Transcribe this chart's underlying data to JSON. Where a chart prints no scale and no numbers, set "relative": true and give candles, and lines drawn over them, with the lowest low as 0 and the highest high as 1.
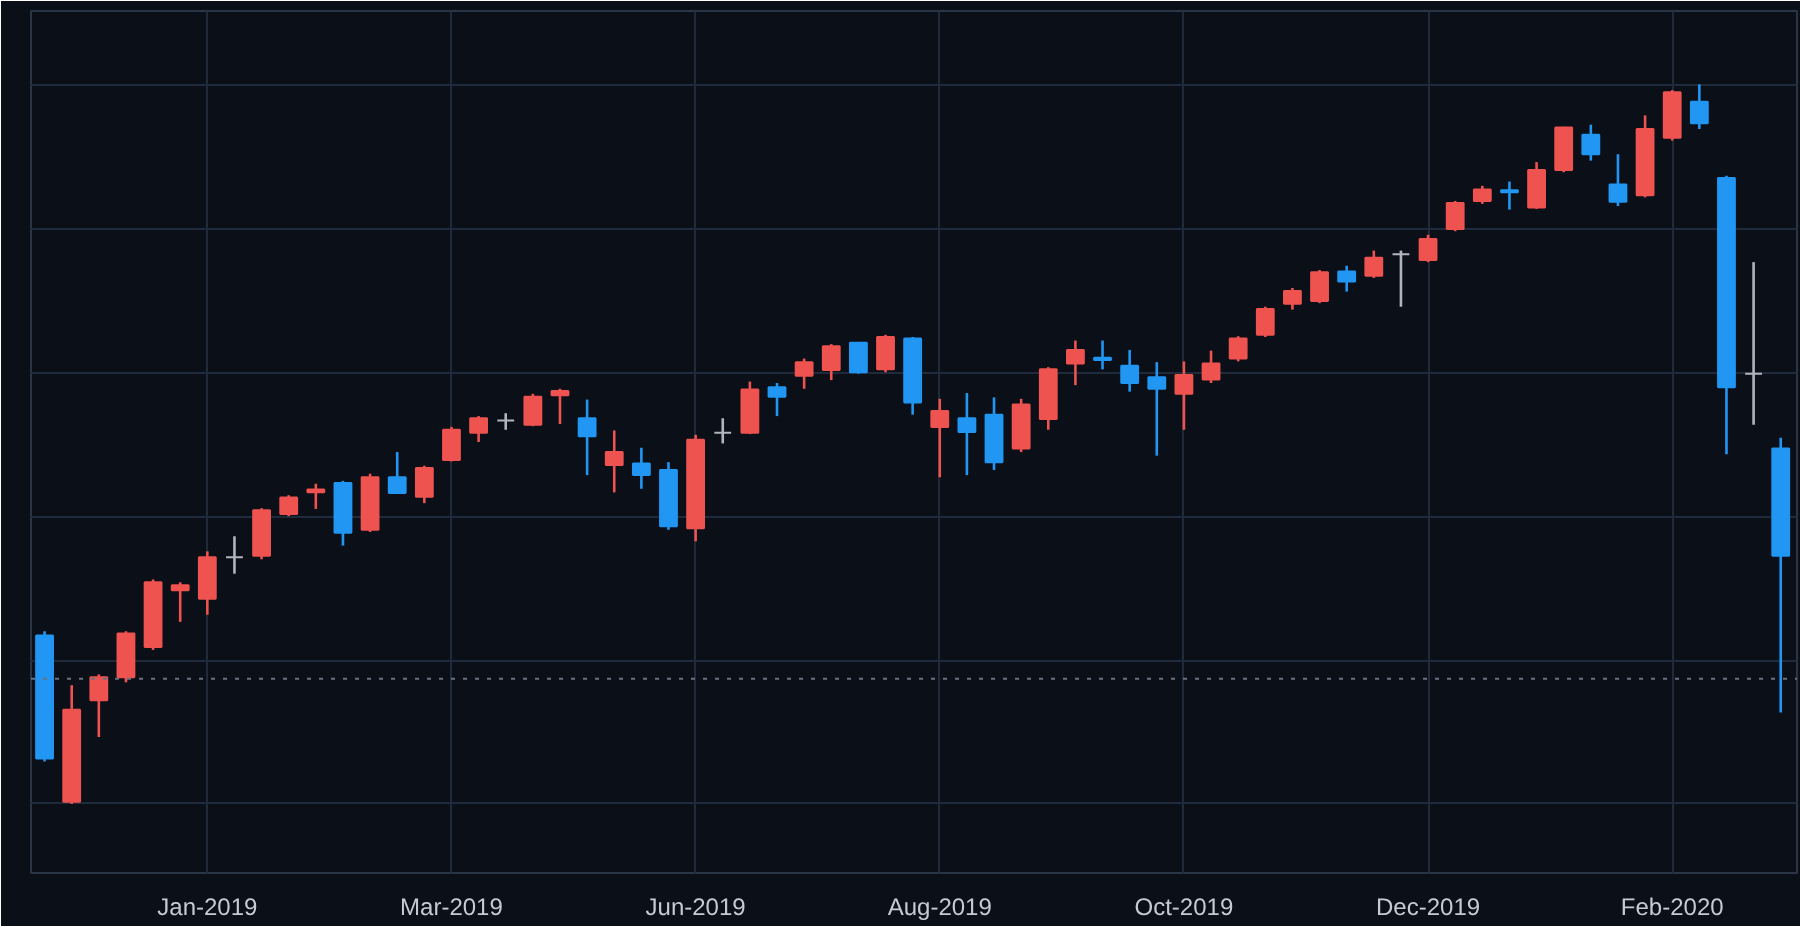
{
  "chart_data": {
    "type": "candlestick",
    "relative": true,
    "grid": true,
    "categories": [
      null,
      null,
      null,
      null,
      null,
      null,
      "Jan-2019",
      null,
      null,
      null,
      null,
      null,
      null,
      null,
      null,
      "Mar-2019",
      null,
      null,
      null,
      null,
      null,
      null,
      null,
      null,
      "Jun-2019",
      null,
      null,
      null,
      null,
      null,
      null,
      null,
      null,
      "Aug-2019",
      null,
      null,
      null,
      null,
      null,
      null,
      null,
      null,
      "Oct-2019",
      null,
      null,
      null,
      null,
      null,
      null,
      null,
      null,
      "Dec-2019",
      null,
      null,
      null,
      null,
      null,
      null,
      null,
      null,
      "Feb-2020",
      null,
      null,
      null,
      null
    ],
    "ohlc": [
      [
        0.234,
        0.24,
        0.059,
        0.063
      ],
      [
        0.003,
        0.165,
        0.0,
        0.131
      ],
      [
        0.144,
        0.18,
        0.093,
        0.176
      ],
      [
        0.176,
        0.24,
        0.169,
        0.237
      ],
      [
        0.218,
        0.312,
        0.214,
        0.308
      ],
      [
        0.297,
        0.308,
        0.253,
        0.304
      ],
      [
        0.285,
        0.351,
        0.263,
        0.343
      ],
      [
        0.343,
        0.372,
        0.32,
        0.343
      ],
      [
        0.345,
        0.411,
        0.34,
        0.408
      ],
      [
        0.403,
        0.429,
        0.4,
        0.426
      ],
      [
        0.433,
        0.445,
        0.41,
        0.437
      ],
      [
        0.446,
        0.449,
        0.359,
        0.377
      ],
      [
        0.381,
        0.459,
        0.378,
        0.454
      ],
      [
        0.454,
        0.489,
        0.432,
        0.432
      ],
      [
        0.427,
        0.47,
        0.418,
        0.467
      ],
      [
        0.478,
        0.524,
        0.476,
        0.52
      ],
      [
        0.516,
        0.539,
        0.503,
        0.536
      ],
      [
        0.533,
        0.543,
        0.52,
        0.533
      ],
      [
        0.527,
        0.57,
        0.525,
        0.566
      ],
      [
        0.568,
        0.577,
        0.528,
        0.574
      ],
      [
        0.536,
        0.562,
        0.457,
        0.511
      ],
      [
        0.471,
        0.519,
        0.433,
        0.489
      ],
      [
        0.473,
        0.495,
        0.438,
        0.457
      ],
      [
        0.464,
        0.475,
        0.381,
        0.386
      ],
      [
        0.383,
        0.513,
        0.365,
        0.506
      ],
      [
        0.516,
        0.536,
        0.501,
        0.516
      ],
      [
        0.516,
        0.587,
        0.514,
        0.576
      ],
      [
        0.579,
        0.585,
        0.539,
        0.566
      ],
      [
        0.595,
        0.619,
        0.577,
        0.614
      ],
      [
        0.603,
        0.639,
        0.589,
        0.636
      ],
      [
        0.641,
        0.642,
        0.598,
        0.6
      ],
      [
        0.604,
        0.652,
        0.6,
        0.649
      ],
      [
        0.647,
        0.649,
        0.541,
        0.558
      ],
      [
        0.524,
        0.563,
        0.454,
        0.546
      ],
      [
        0.536,
        0.571,
        0.457,
        0.517
      ],
      [
        0.541,
        0.565,
        0.464,
        0.475
      ],
      [
        0.494,
        0.563,
        0.489,
        0.555
      ],
      [
        0.535,
        0.607,
        0.52,
        0.604
      ],
      [
        0.612,
        0.644,
        0.582,
        0.631
      ],
      [
        0.62,
        0.644,
        0.604,
        0.617
      ],
      [
        0.609,
        0.631,
        0.573,
        0.585
      ],
      [
        0.593,
        0.614,
        0.484,
        0.577
      ],
      [
        0.57,
        0.615,
        0.52,
        0.596
      ],
      [
        0.59,
        0.63,
        0.585,
        0.612
      ],
      [
        0.619,
        0.65,
        0.615,
        0.647
      ],
      [
        0.652,
        0.691,
        0.649,
        0.688
      ],
      [
        0.695,
        0.717,
        0.687,
        0.713
      ],
      [
        0.699,
        0.742,
        0.696,
        0.739
      ],
      [
        0.74,
        0.748,
        0.712,
        0.726
      ],
      [
        0.734,
        0.769,
        0.731,
        0.759
      ],
      [
        0.764,
        0.769,
        0.691,
        0.764
      ],
      [
        0.756,
        0.791,
        0.753,
        0.785
      ],
      [
        0.799,
        0.838,
        0.796,
        0.835
      ],
      [
        0.838,
        0.859,
        0.834,
        0.854
      ],
      [
        0.853,
        0.865,
        0.826,
        0.85
      ],
      [
        0.829,
        0.892,
        0.827,
        0.881
      ],
      [
        0.881,
        0.941,
        0.878,
        0.94
      ],
      [
        0.93,
        0.944,
        0.894,
        0.903
      ],
      [
        0.861,
        0.903,
        0.831,
        0.837
      ],
      [
        0.846,
        0.957,
        0.843,
        0.938
      ],
      [
        0.926,
        0.992,
        0.922,
        0.989
      ],
      [
        0.976,
        1.0,
        0.938,
        0.946
      ],
      [
        0.87,
        0.873,
        0.486,
        0.579
      ],
      [
        0.598,
        0.753,
        0.527,
        0.598
      ],
      [
        0.494,
        0.509,
        0.127,
        0.345
      ]
    ],
    "colors": [
      "#2196f3",
      "#ef5350",
      "#ef5350",
      "#ef5350",
      "#ef5350",
      "#ef5350",
      "#ef5350",
      "#b2b5be",
      "#ef5350",
      "#ef5350",
      "#ef5350",
      "#2196f3",
      "#ef5350",
      "#2196f3",
      "#ef5350",
      "#ef5350",
      "#ef5350",
      "#b2b5be",
      "#ef5350",
      "#ef5350",
      "#2196f3",
      "#ef5350",
      "#2196f3",
      "#2196f3",
      "#ef5350",
      "#b2b5be",
      "#ef5350",
      "#2196f3",
      "#ef5350",
      "#ef5350",
      "#2196f3",
      "#ef5350",
      "#2196f3",
      "#ef5350",
      "#2196f3",
      "#2196f3",
      "#ef5350",
      "#ef5350",
      "#ef5350",
      "#2196f3",
      "#2196f3",
      "#2196f3",
      "#ef5350",
      "#ef5350",
      "#ef5350",
      "#ef5350",
      "#ef5350",
      "#ef5350",
      "#2196f3",
      "#ef5350",
      "#b2b5be",
      "#ef5350",
      "#ef5350",
      "#ef5350",
      "#2196f3",
      "#ef5350",
      "#ef5350",
      "#2196f3",
      "#2196f3",
      "#ef5350",
      "#ef5350",
      "#2196f3",
      "#2196f3",
      "#b2b5be",
      "#2196f3"
    ],
    "ref_lines": [
      {
        "axis": "y",
        "value": 0.174,
        "color": "#6b7280",
        "line_style": "dotted"
      }
    ]
  }
}
